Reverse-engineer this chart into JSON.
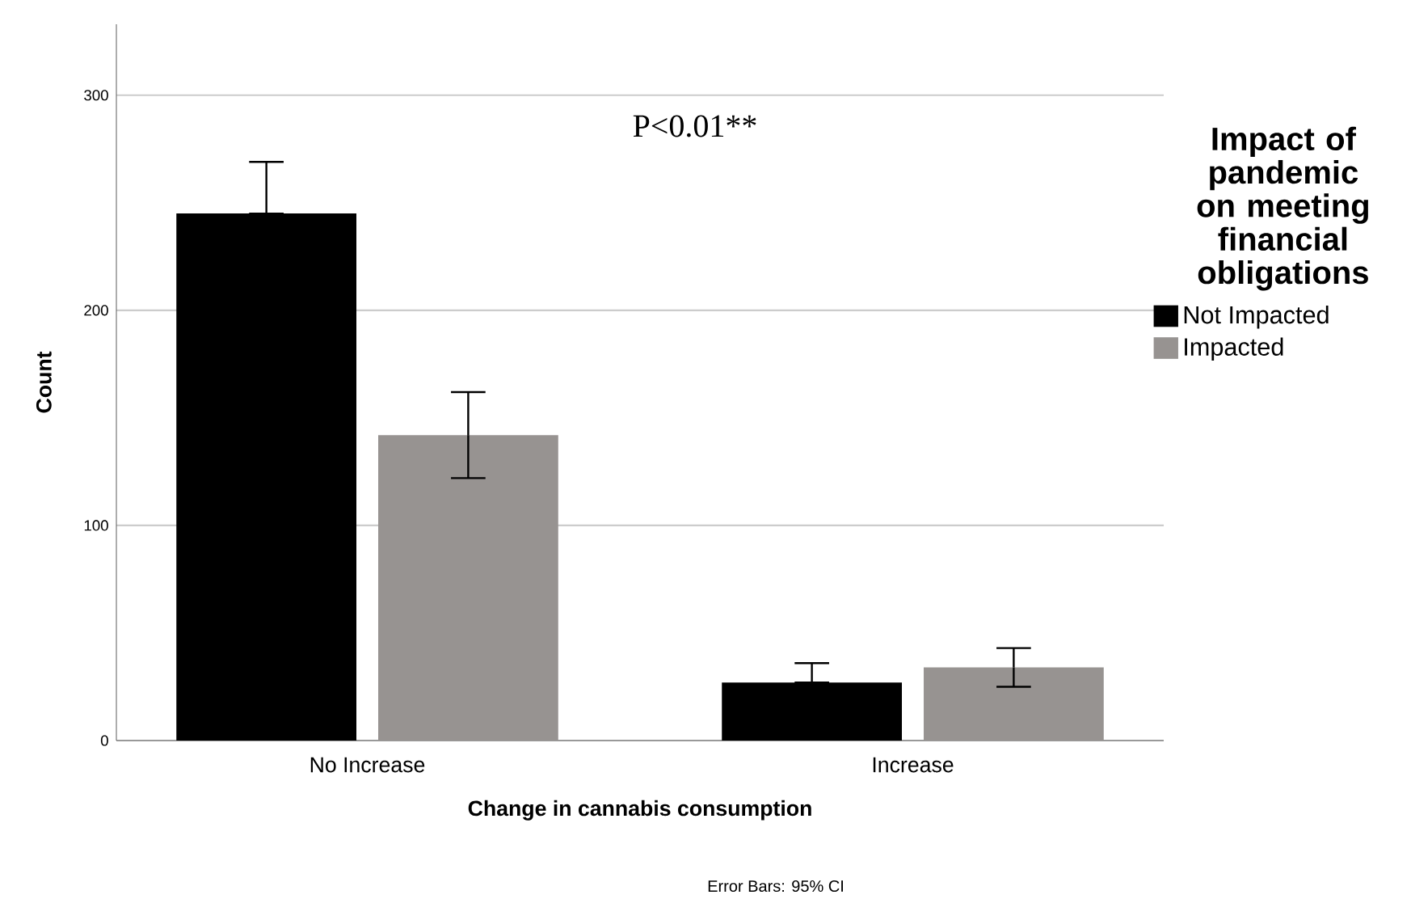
{
  "chart_data": {
    "type": "bar",
    "xlabel": "Change in cannabis consumption",
    "ylabel": "Count",
    "legend_title": "Impact of pandemic on meeting financial obligations",
    "categories": [
      "No Increase",
      "Increase"
    ],
    "series": [
      {
        "name": "Not Impacted",
        "color": "#000000",
        "values": [
          245,
          27
        ],
        "errors": [
          [
            245,
            269
          ],
          [
            27,
            36
          ]
        ]
      },
      {
        "name": "Impacted",
        "color": "#979391",
        "values": [
          142,
          34
        ],
        "errors": [
          [
            122,
            162
          ],
          [
            25,
            43
          ]
        ]
      }
    ],
    "ylim": [
      0,
      333
    ],
    "yticks": [
      0,
      100,
      200,
      300
    ],
    "grid": "y",
    "legend": "right",
    "annotations": [
      "P<0.01**",
      "Error Bars: 95% CI"
    ]
  }
}
